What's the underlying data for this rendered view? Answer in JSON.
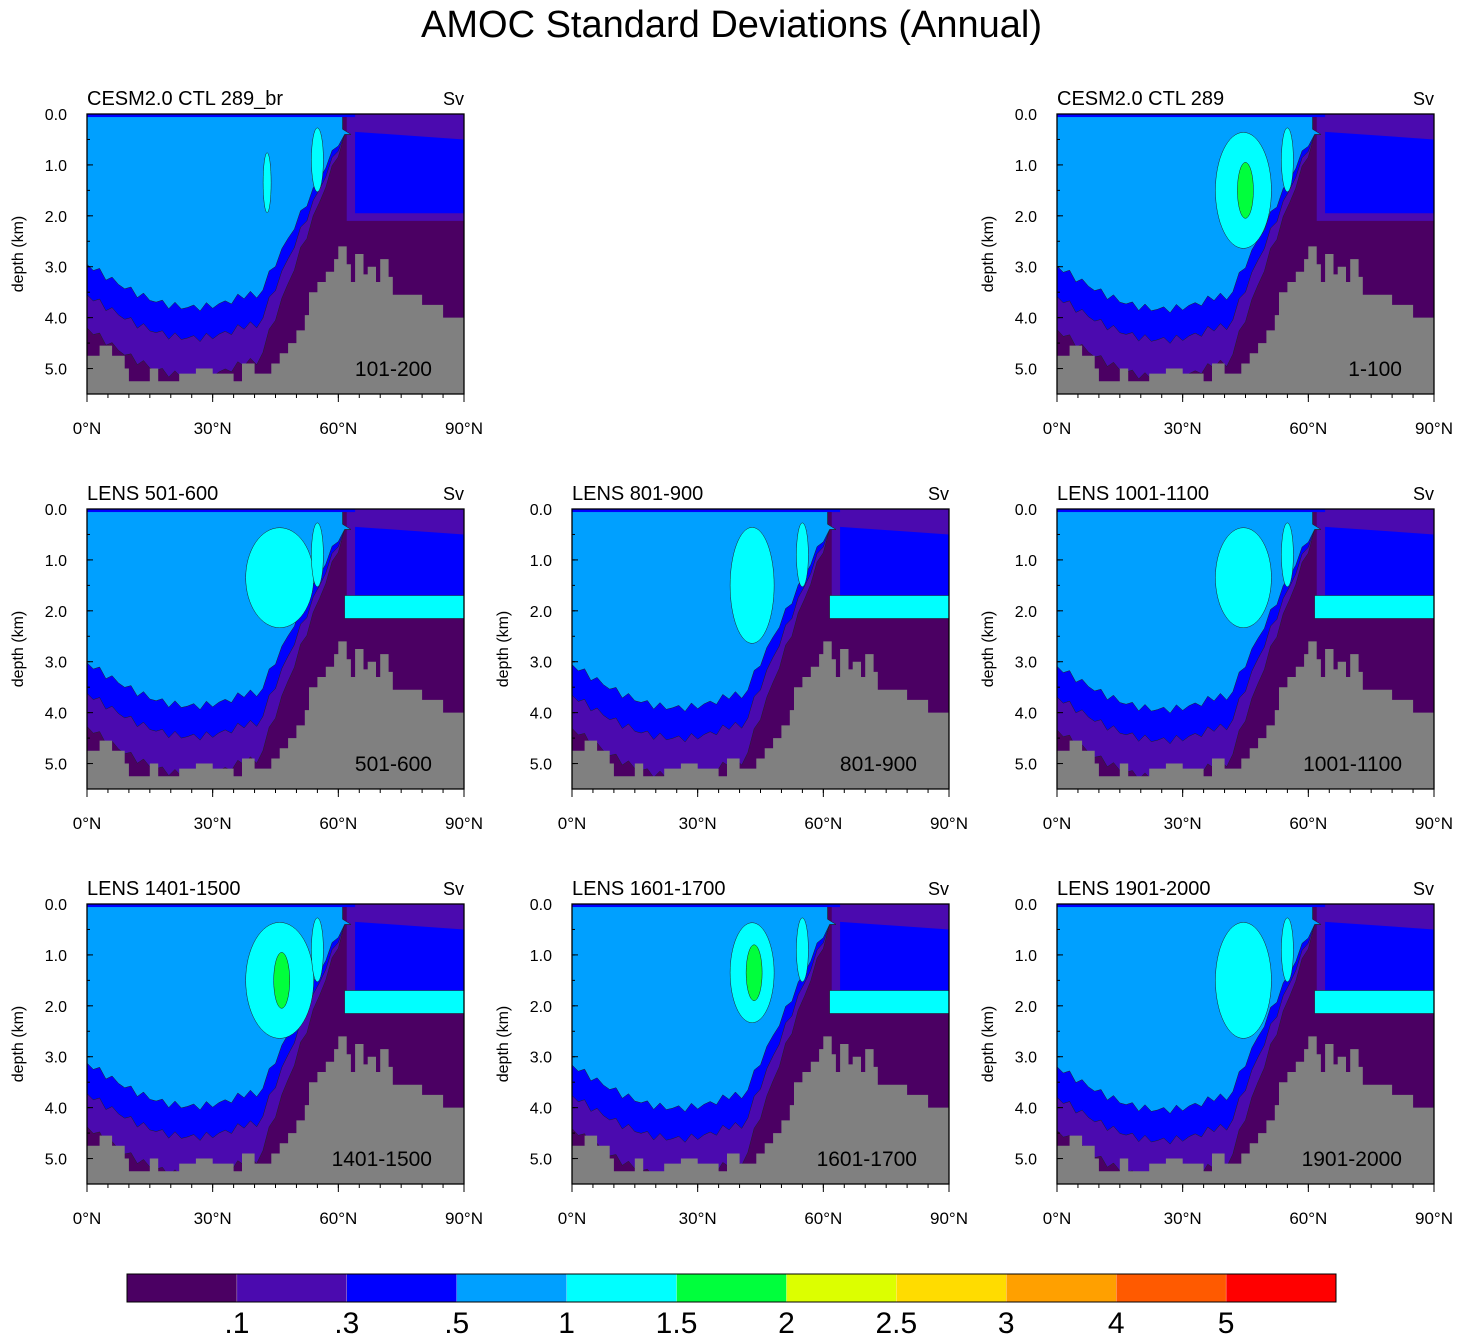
{
  "title": "AMOC Standard Deviations (Annual)",
  "chart_data": {
    "type": "contour",
    "units": "Sv",
    "ylabel": "depth (km)",
    "xlabel": "",
    "x_ticks": [
      "0°N",
      "30°N",
      "60°N",
      "90°N"
    ],
    "y_ticks": [
      "0.0",
      "1.0",
      "2.0",
      "3.0",
      "4.0",
      "5.0"
    ],
    "xlim": [
      0,
      90
    ],
    "ylim_km": [
      0,
      5.5
    ],
    "panels": [
      {
        "id": "p1",
        "title": "CESM2.0 CTL 289_br",
        "units": "Sv",
        "period": "101-200"
      },
      {
        "id": "p2",
        "title": "CESM2.0 CTL 289",
        "units": "Sv",
        "period": "1-100"
      },
      {
        "id": "p3",
        "title": "LENS 501-600",
        "units": "Sv",
        "period": "501-600"
      },
      {
        "id": "p4",
        "title": "LENS 801-900",
        "units": "Sv",
        "period": "801-900"
      },
      {
        "id": "p5",
        "title": "LENS 1001-1100",
        "units": "Sv",
        "period": "1001-1100"
      },
      {
        "id": "p6",
        "title": "LENS 1401-1500",
        "units": "Sv",
        "period": "1401-1500"
      },
      {
        "id": "p7",
        "title": "LENS 1601-1700",
        "units": "Sv",
        "period": "1601-1700"
      },
      {
        "id": "p8",
        "title": "LENS 1901-2000",
        "units": "Sv",
        "period": "1901-2000"
      }
    ],
    "colorbar": {
      "levels": [
        ".1",
        ".3",
        ".5",
        "1",
        "1.5",
        "2",
        "2.5",
        "3",
        "4",
        "5"
      ],
      "colors": [
        "#4b0063",
        "#4b0aaf",
        "#0000ff",
        "#00a0ff",
        "#00ffff",
        "#00ff3c",
        "#dcff00",
        "#ffdc00",
        "#ffa000",
        "#ff5a00",
        "#ff0000"
      ]
    },
    "topography_color": "#808080"
  }
}
